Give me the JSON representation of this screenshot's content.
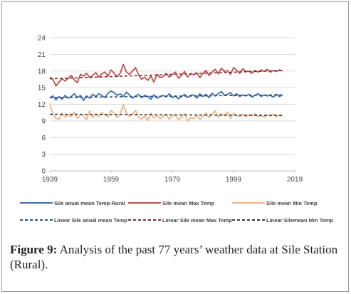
{
  "chart_data": {
    "type": "line",
    "title": "",
    "xlabel": "",
    "ylabel": "",
    "xlim": [
      1939,
      2019
    ],
    "ylim": [
      0,
      24
    ],
    "x_ticks": [
      1939,
      1959,
      1979,
      1999,
      2019
    ],
    "y_ticks": [
      0,
      3,
      6,
      9,
      12,
      15,
      18,
      21,
      24
    ],
    "grid": true,
    "legend_position": "bottom",
    "x": [
      1939,
      1940,
      1941,
      1942,
      1943,
      1944,
      1945,
      1946,
      1947,
      1948,
      1949,
      1950,
      1951,
      1952,
      1953,
      1954,
      1955,
      1956,
      1957,
      1958,
      1959,
      1960,
      1961,
      1962,
      1963,
      1964,
      1965,
      1966,
      1967,
      1968,
      1969,
      1970,
      1971,
      1972,
      1973,
      1974,
      1975,
      1976,
      1977,
      1978,
      1979,
      1980,
      1981,
      1982,
      1983,
      1984,
      1985,
      1986,
      1987,
      1988,
      1989,
      1990,
      1991,
      1992,
      1993,
      1994,
      1995,
      1996,
      1997,
      1998,
      1999,
      2000,
      2001,
      2002,
      2003,
      2004,
      2005,
      2006,
      2007,
      2008,
      2009,
      2010,
      2011,
      2012,
      2013,
      2014,
      2015
    ],
    "series": [
      {
        "name": "Sile anual mean Temp-Rural",
        "color": "#3f6fb0",
        "values": [
          13.2,
          13.5,
          12.8,
          13.4,
          12.9,
          13.6,
          13.1,
          13.4,
          13.9,
          13.2,
          13.6,
          12.7,
          13.5,
          13.1,
          13.8,
          13.4,
          13.9,
          13.6,
          13.2,
          14.0,
          14.4,
          14.1,
          13.6,
          13.9,
          13.4,
          14.2,
          13.7,
          13.1,
          13.5,
          13.8,
          13.2,
          13.6,
          13.4,
          12.9,
          13.7,
          13.1,
          13.4,
          13.6,
          13.3,
          13.9,
          13.2,
          13.5,
          13.0,
          13.4,
          13.8,
          13.2,
          13.6,
          13.7,
          13.1,
          13.9,
          13.4,
          13.8,
          13.2,
          14.0,
          13.5,
          13.9,
          14.3,
          13.6,
          13.8,
          14.1,
          13.5,
          13.9,
          13.4,
          13.7,
          13.5,
          13.8,
          13.3,
          13.6,
          13.9,
          13.4,
          13.7,
          13.5,
          13.6,
          13.3,
          13.8,
          13.4,
          13.7
        ]
      },
      {
        "name": "Sile mean Max Temp",
        "color": "#c0504d",
        "values": [
          16.9,
          16.5,
          15.3,
          16.0,
          16.6,
          16.2,
          16.7,
          17.2,
          16.4,
          15.9,
          17.4,
          17.1,
          17.6,
          16.8,
          17.2,
          17.7,
          16.9,
          17.5,
          17.8,
          17.1,
          18.2,
          17.6,
          17.0,
          17.6,
          19.2,
          17.8,
          17.4,
          18.0,
          18.6,
          17.3,
          16.5,
          16.9,
          16.3,
          17.1,
          16.0,
          17.4,
          16.8,
          17.0,
          17.6,
          16.9,
          17.4,
          17.8,
          16.7,
          17.2,
          17.9,
          16.9,
          17.5,
          17.3,
          17.7,
          16.8,
          17.6,
          18.1,
          17.2,
          17.8,
          18.3,
          17.5,
          18.5,
          17.9,
          18.1,
          17.4,
          18.6,
          18.2,
          17.6,
          18.4,
          17.9,
          18.0,
          17.6,
          18.1,
          17.8,
          18.2,
          17.9,
          18.3,
          17.8,
          18.1,
          17.9,
          18.2,
          18.0
        ]
      },
      {
        "name": "Sile mean Min Temp",
        "color": "#f4b183",
        "values": [
          12.0,
          10.2,
          9.5,
          9.3,
          10.4,
          9.7,
          10.1,
          9.8,
          10.6,
          9.4,
          10.2,
          9.9,
          9.2,
          10.8,
          9.6,
          10.3,
          9.8,
          10.5,
          10.1,
          9.7,
          10.9,
          10.4,
          9.6,
          10.2,
          11.9,
          10.5,
          9.8,
          10.3,
          10.9,
          9.6,
          9.3,
          9.9,
          9.1,
          10.4,
          9.5,
          10.0,
          9.4,
          9.8,
          10.2,
          9.3,
          9.9,
          10.1,
          9.2,
          9.7,
          10.3,
          9.0,
          9.6,
          9.4,
          10.1,
          9.3,
          9.8,
          10.4,
          9.6,
          10.2,
          10.8,
          9.7,
          10.3,
          9.9,
          10.6,
          9.5,
          10.4,
          10.0,
          9.8,
          10.2,
          9.7,
          10.1,
          9.9,
          10.3,
          9.8,
          10.0,
          9.7,
          10.1,
          9.9,
          10.2,
          9.8,
          10.0,
          9.9
        ]
      }
    ],
    "trendlines": [
      {
        "name": "Linear Sile anual mean Temp",
        "color": "#2f4f7f",
        "start": [
          1939,
          13.2
        ],
        "end": [
          2015,
          13.7
        ]
      },
      {
        "name": "Linear Sile mean Max Temp",
        "color": "#7f2f2f",
        "start": [
          1939,
          16.6
        ],
        "end": [
          2015,
          18.1
        ]
      },
      {
        "name": "Linear Silemean Min Temp",
        "color": "#3a3a3a",
        "start": [
          1939,
          10.2
        ],
        "end": [
          2015,
          10.0
        ]
      }
    ]
  },
  "caption": {
    "label": "Figure 9:",
    "text": " Analysis of the past 77 years’ weather data at Sile Station (Rural)."
  }
}
